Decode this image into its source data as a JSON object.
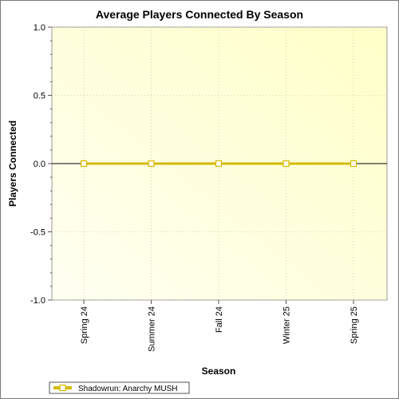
{
  "chart_data": {
    "type": "line",
    "title": "Average Players Connected By Season",
    "xlabel": "Season",
    "ylabel": "Players Connected",
    "categories": [
      "Spring 24",
      "Summer 24",
      "Fall 24",
      "Winter 25",
      "Spring 25"
    ],
    "ylim": [
      -1.0,
      1.0
    ],
    "yticks": [
      "1.0",
      "0.5",
      "0.0",
      "-0.5",
      "-1.0"
    ],
    "grid": true,
    "legend_position": "bottom-left",
    "series": [
      {
        "name": "Shadowrun: Anarchy MUSH",
        "values": [
          0,
          0,
          0,
          0,
          0
        ],
        "color": "#d4b800"
      }
    ],
    "colors": {
      "plot_bg_light": "#ffffe6",
      "plot_bg_dark": "#ffffd0",
      "line": "#d4b800",
      "axis": "#000000",
      "grid": "#c8c8a0"
    }
  }
}
